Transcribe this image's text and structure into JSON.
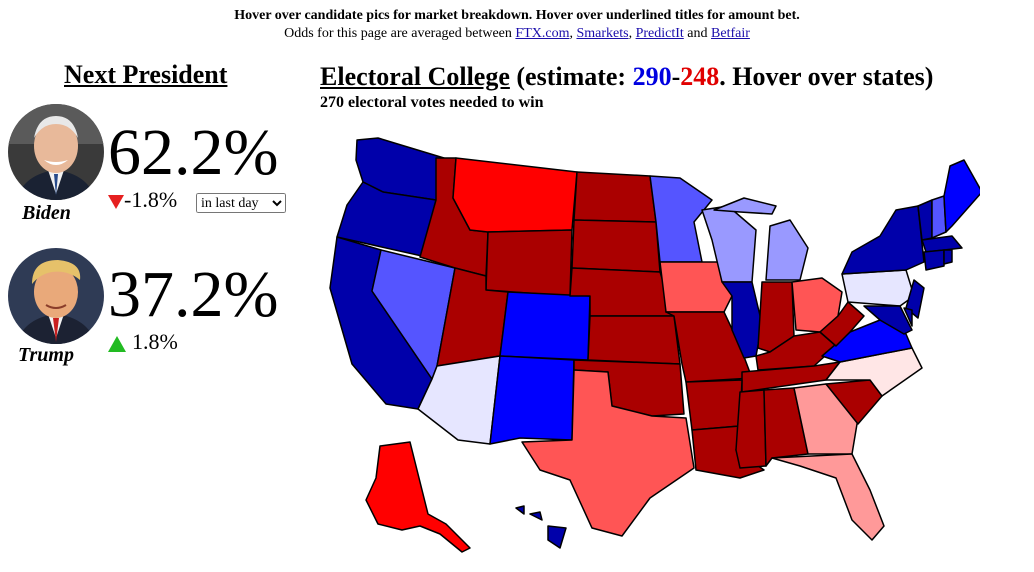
{
  "header": {
    "line1": "Hover over candidate pics for market breakdown. Hover over underlined titles for amount bet.",
    "line2_prefix": "Odds for this page are averaged between ",
    "sources": [
      "FTX.com",
      "Smarkets",
      "PredictIt",
      "Betfair"
    ],
    "sep_comma": ", ",
    "sep_and": " and "
  },
  "next_president": {
    "title": "Next President",
    "candidates": [
      {
        "name": "Biden",
        "pct": "62.2%",
        "change": "-1.8%",
        "direction": "down"
      },
      {
        "name": "Trump",
        "pct": "37.2%",
        "change": "1.8%",
        "direction": "up"
      }
    ],
    "period_select": {
      "selected": "in last day"
    }
  },
  "electoral_college": {
    "title": "Electoral College",
    "estimate_prefix": " (estimate: ",
    "dem_votes": "290",
    "dash": "-",
    "rep_votes": "248",
    "estimate_suffix": ". Hover over states)",
    "subtitle": "270 electoral votes needed to win"
  },
  "colors": {
    "strong_dem": "#0000aa",
    "likely_dem": "#0000ff",
    "lean_dem": "#5555ff",
    "tilt_dem": "#9999ff",
    "toss_dem": "#e6e6ff",
    "strong_rep": "#aa0000",
    "likely_rep": "#ff0000",
    "lean_rep": "#ff5555",
    "tilt_rep": "#ff9999",
    "toss_rep": "#ffe6e6"
  }
}
